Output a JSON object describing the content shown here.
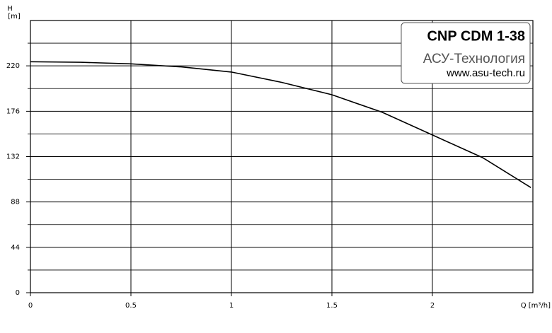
{
  "chart_data": {
    "type": "line",
    "y_label": "H",
    "y_unit": "[m]",
    "x_label": "Q [m³/h]",
    "annotation": {
      "title": "CNP CDM 1-38",
      "company": "АСУ-Технология",
      "url": "www.asu-tech.ru"
    },
    "x": [
      0,
      0.25,
      0.5,
      0.75,
      1,
      1.25,
      1.5,
      1.75,
      2,
      2.25,
      2.49
    ],
    "series": [
      {
        "color": "#000000",
        "values": [
          224,
          223.5,
          222,
          219,
          214,
          204,
          192,
          175,
          153,
          131,
          102
        ]
      }
    ],
    "xlim": [
      0,
      2.5
    ],
    "xticks": [
      0,
      0.5,
      1,
      1.5,
      2
    ],
    "ylim": [
      0,
      264
    ],
    "yticks": [
      0,
      44,
      88,
      132,
      176,
      220
    ],
    "grid": true
  }
}
